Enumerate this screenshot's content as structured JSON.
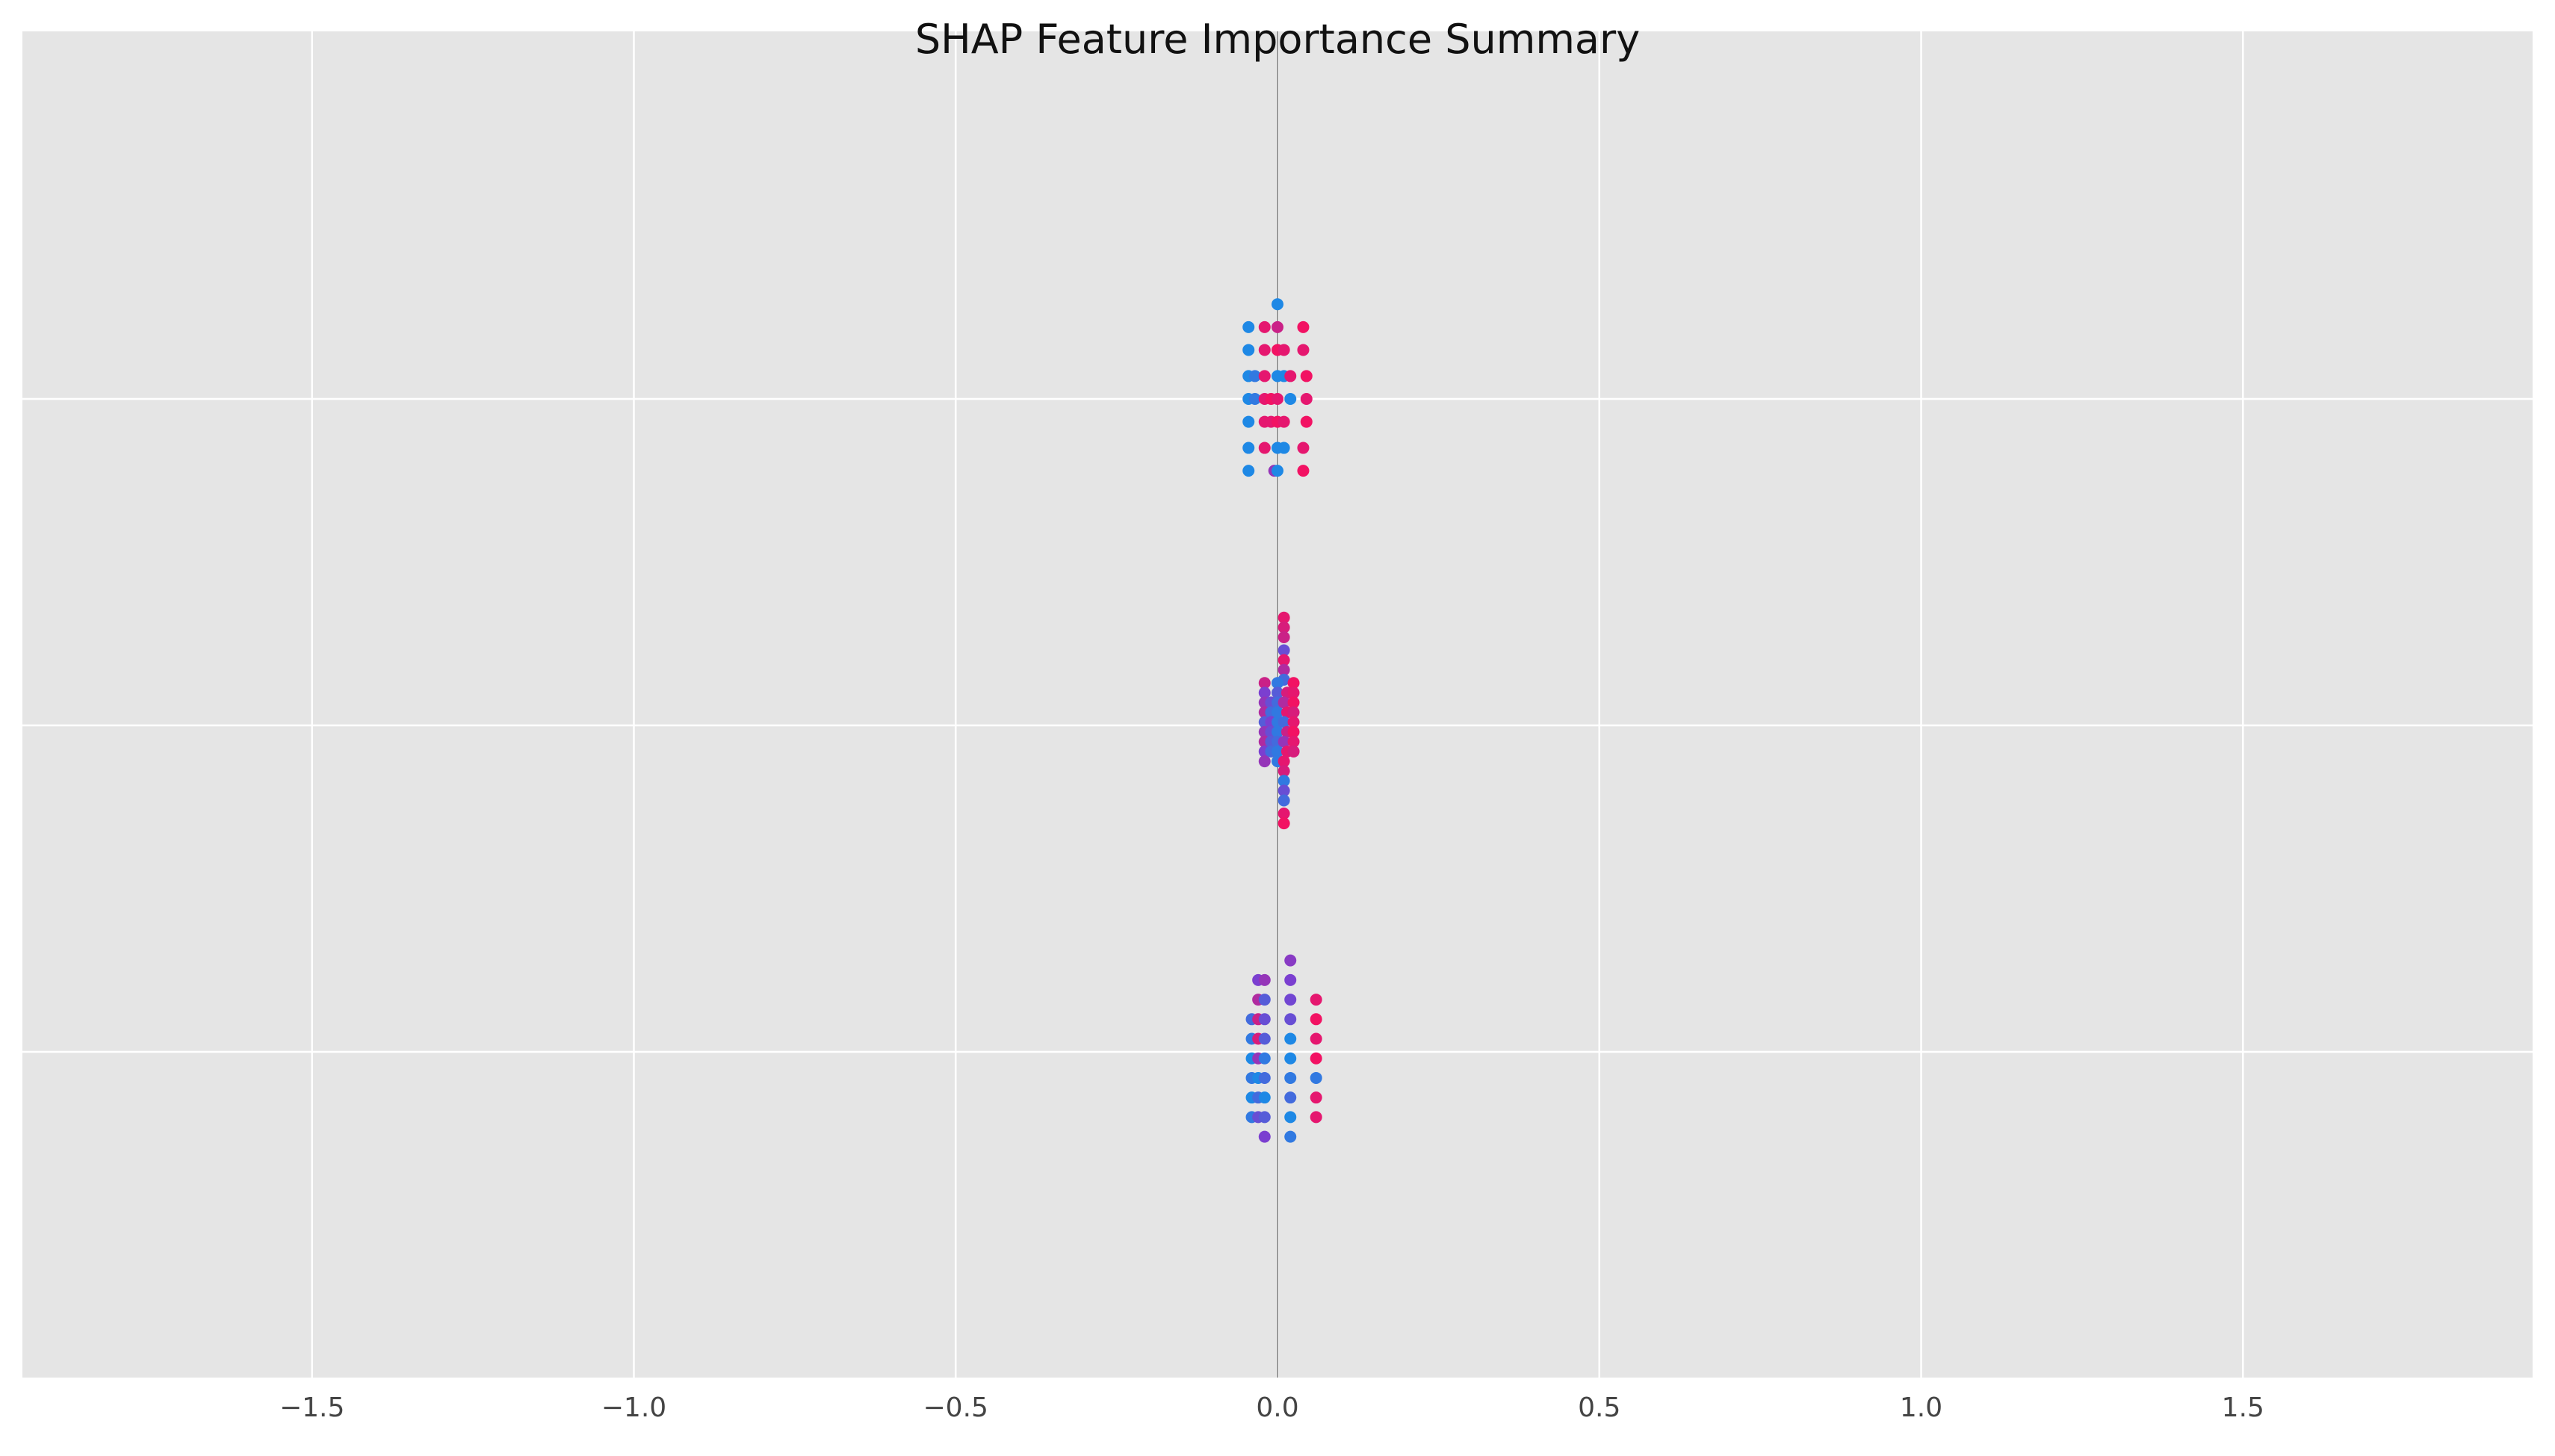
{
  "chart_data": {
    "type": "scatter",
    "title": "SHAP Feature Importance Summary",
    "xlabel": "",
    "ylabel": "",
    "xlim": [
      -1.95,
      1.95
    ],
    "x_ticks": [
      -1.5,
      -1.0,
      -0.5,
      0.0,
      0.5,
      1.0,
      1.5
    ],
    "x_tick_labels": [
      "−1.5",
      "−1.0",
      "−0.5",
      "0.0",
      "0.5",
      "1.0",
      "1.5"
    ],
    "feature_rows": 3,
    "grid": true,
    "zero_line": true,
    "colors": {
      "background": "#e5e5e5",
      "grid": "#ffffff",
      "zero_line": "#999999",
      "low_value": "#1e88e5",
      "mid_value": "#7b3fd0",
      "high_value": "#ff0d57"
    },
    "series": [
      {
        "row": 0,
        "points": [
          [
            -0.03,
            -0.22,
            0.5
          ],
          [
            -0.02,
            -0.22,
            0.6
          ],
          [
            0.02,
            -0.28,
            0.55
          ],
          [
            0.02,
            -0.22,
            0.5
          ],
          [
            0.02,
            -0.16,
            0.45
          ],
          [
            0.02,
            -0.1,
            0.4
          ],
          [
            -0.03,
            -0.16,
            0.7
          ],
          [
            -0.02,
            -0.16,
            0.3
          ],
          [
            -0.04,
            -0.1,
            0.2
          ],
          [
            -0.03,
            -0.1,
            0.8
          ],
          [
            -0.02,
            -0.1,
            0.4
          ],
          [
            0.02,
            -0.04,
            0.0
          ],
          [
            -0.04,
            -0.04,
            0.1
          ],
          [
            -0.03,
            -0.04,
            0.85
          ],
          [
            -0.02,
            -0.04,
            0.3
          ],
          [
            0.02,
            0.02,
            0.0
          ],
          [
            -0.04,
            0.02,
            0.0
          ],
          [
            -0.03,
            0.02,
            0.6
          ],
          [
            -0.02,
            0.02,
            0.1
          ],
          [
            0.02,
            0.08,
            0.1
          ],
          [
            -0.04,
            0.08,
            0.1
          ],
          [
            -0.03,
            0.08,
            0.0
          ],
          [
            -0.02,
            0.08,
            0.2
          ],
          [
            0.02,
            0.14,
            0.2
          ],
          [
            -0.04,
            0.14,
            0.0
          ],
          [
            -0.03,
            0.14,
            0.2
          ],
          [
            -0.02,
            0.14,
            0.0
          ],
          [
            0.02,
            0.2,
            0.0
          ],
          [
            -0.04,
            0.2,
            0.1
          ],
          [
            -0.03,
            0.2,
            0.4
          ],
          [
            -0.02,
            0.2,
            0.3
          ],
          [
            0.02,
            0.26,
            0.1
          ],
          [
            -0.02,
            0.26,
            0.5
          ],
          [
            0.06,
            -0.16,
            0.9
          ],
          [
            0.06,
            -0.1,
            0.95
          ],
          [
            0.06,
            -0.04,
            0.9
          ],
          [
            0.06,
            0.02,
            0.95
          ],
          [
            0.06,
            0.08,
            0.1
          ],
          [
            0.06,
            0.14,
            0.9
          ],
          [
            0.06,
            0.2,
            0.9
          ]
        ]
      },
      {
        "row": 1,
        "points": [
          [
            0.01,
            -0.33,
            0.9
          ],
          [
            0.01,
            -0.3,
            0.85
          ],
          [
            0.01,
            -0.27,
            0.8
          ],
          [
            0.01,
            -0.23,
            0.4
          ],
          [
            0.01,
            -0.2,
            0.9
          ],
          [
            0.01,
            -0.17,
            0.7
          ],
          [
            0.01,
            -0.14,
            0.2
          ],
          [
            -0.02,
            -0.13,
            0.8
          ],
          [
            0.0,
            -0.13,
            0.1
          ],
          [
            0.025,
            -0.13,
            0.95
          ],
          [
            -0.02,
            -0.1,
            0.5
          ],
          [
            0.0,
            -0.1,
            0.3
          ],
          [
            0.015,
            -0.1,
            0.85
          ],
          [
            0.025,
            -0.1,
            0.9
          ],
          [
            -0.02,
            -0.07,
            0.6
          ],
          [
            -0.01,
            -0.07,
            0.4
          ],
          [
            0.0,
            -0.07,
            0.2
          ],
          [
            0.01,
            -0.07,
            0.7
          ],
          [
            0.025,
            -0.07,
            0.95
          ],
          [
            -0.02,
            -0.04,
            0.7
          ],
          [
            -0.01,
            -0.04,
            0.2
          ],
          [
            0.0,
            -0.04,
            0.1
          ],
          [
            0.015,
            -0.04,
            0.9
          ],
          [
            0.025,
            -0.04,
            0.85
          ],
          [
            -0.02,
            -0.01,
            0.3
          ],
          [
            -0.01,
            -0.01,
            0.5
          ],
          [
            0.0,
            -0.01,
            0.1
          ],
          [
            0.01,
            -0.01,
            0.2
          ],
          [
            0.025,
            -0.01,
            0.9
          ],
          [
            -0.02,
            0.02,
            0.6
          ],
          [
            -0.01,
            0.02,
            0.4
          ],
          [
            0.0,
            0.02,
            0.1
          ],
          [
            0.015,
            0.02,
            0.8
          ],
          [
            0.025,
            0.02,
            0.95
          ],
          [
            -0.02,
            0.05,
            0.7
          ],
          [
            -0.01,
            0.05,
            0.3
          ],
          [
            0.0,
            0.05,
            0.2
          ],
          [
            0.01,
            0.05,
            0.6
          ],
          [
            0.025,
            0.05,
            0.9
          ],
          [
            -0.02,
            0.08,
            0.5
          ],
          [
            -0.01,
            0.08,
            0.2
          ],
          [
            0.0,
            0.08,
            0.1
          ],
          [
            0.015,
            0.08,
            0.9
          ],
          [
            0.025,
            0.08,
            0.85
          ],
          [
            -0.02,
            0.11,
            0.6
          ],
          [
            0.0,
            0.11,
            0.1
          ],
          [
            0.01,
            0.11,
            0.9
          ],
          [
            0.01,
            0.14,
            0.85
          ],
          [
            0.01,
            0.17,
            0.1
          ],
          [
            0.01,
            0.2,
            0.4
          ],
          [
            0.01,
            0.23,
            0.2
          ],
          [
            0.01,
            0.27,
            0.9
          ],
          [
            0.01,
            0.3,
            0.95
          ]
        ]
      },
      {
        "row": 2,
        "points": [
          [
            0.0,
            -0.29,
            0.0
          ],
          [
            -0.045,
            -0.22,
            0.0
          ],
          [
            -0.02,
            -0.22,
            0.9
          ],
          [
            0.0,
            -0.22,
            0.8
          ],
          [
            0.04,
            -0.22,
            0.95
          ],
          [
            -0.045,
            -0.15,
            0.0
          ],
          [
            -0.02,
            -0.15,
            0.9
          ],
          [
            0.0,
            -0.15,
            0.95
          ],
          [
            0.01,
            -0.15,
            0.9
          ],
          [
            0.04,
            -0.15,
            0.9
          ],
          [
            -0.045,
            -0.07,
            0.0
          ],
          [
            -0.035,
            -0.07,
            0.1
          ],
          [
            -0.02,
            -0.07,
            0.9
          ],
          [
            0.0,
            -0.07,
            0.0
          ],
          [
            0.01,
            -0.07,
            0.0
          ],
          [
            0.02,
            -0.07,
            0.9
          ],
          [
            0.045,
            -0.07,
            0.95
          ],
          [
            -0.045,
            0.0,
            0.0
          ],
          [
            -0.035,
            0.0,
            0.1
          ],
          [
            -0.02,
            0.0,
            0.9
          ],
          [
            -0.01,
            0.0,
            0.95
          ],
          [
            0.0,
            0.0,
            0.9
          ],
          [
            0.02,
            0.0,
            0.0
          ],
          [
            0.045,
            0.0,
            0.9
          ],
          [
            -0.045,
            0.07,
            0.0
          ],
          [
            -0.02,
            0.07,
            0.9
          ],
          [
            -0.01,
            0.07,
            0.9
          ],
          [
            0.0,
            0.07,
            0.95
          ],
          [
            0.01,
            0.07,
            0.9
          ],
          [
            0.045,
            0.07,
            0.95
          ],
          [
            -0.045,
            0.15,
            0.0
          ],
          [
            -0.02,
            0.15,
            0.9
          ],
          [
            0.0,
            0.15,
            0.0
          ],
          [
            0.01,
            0.15,
            0.0
          ],
          [
            0.04,
            0.15,
            0.9
          ],
          [
            -0.045,
            0.22,
            0.0
          ],
          [
            -0.005,
            0.22,
            0.6
          ],
          [
            0.0,
            0.22,
            0.0
          ],
          [
            0.04,
            0.22,
            0.95
          ]
        ]
      }
    ]
  }
}
